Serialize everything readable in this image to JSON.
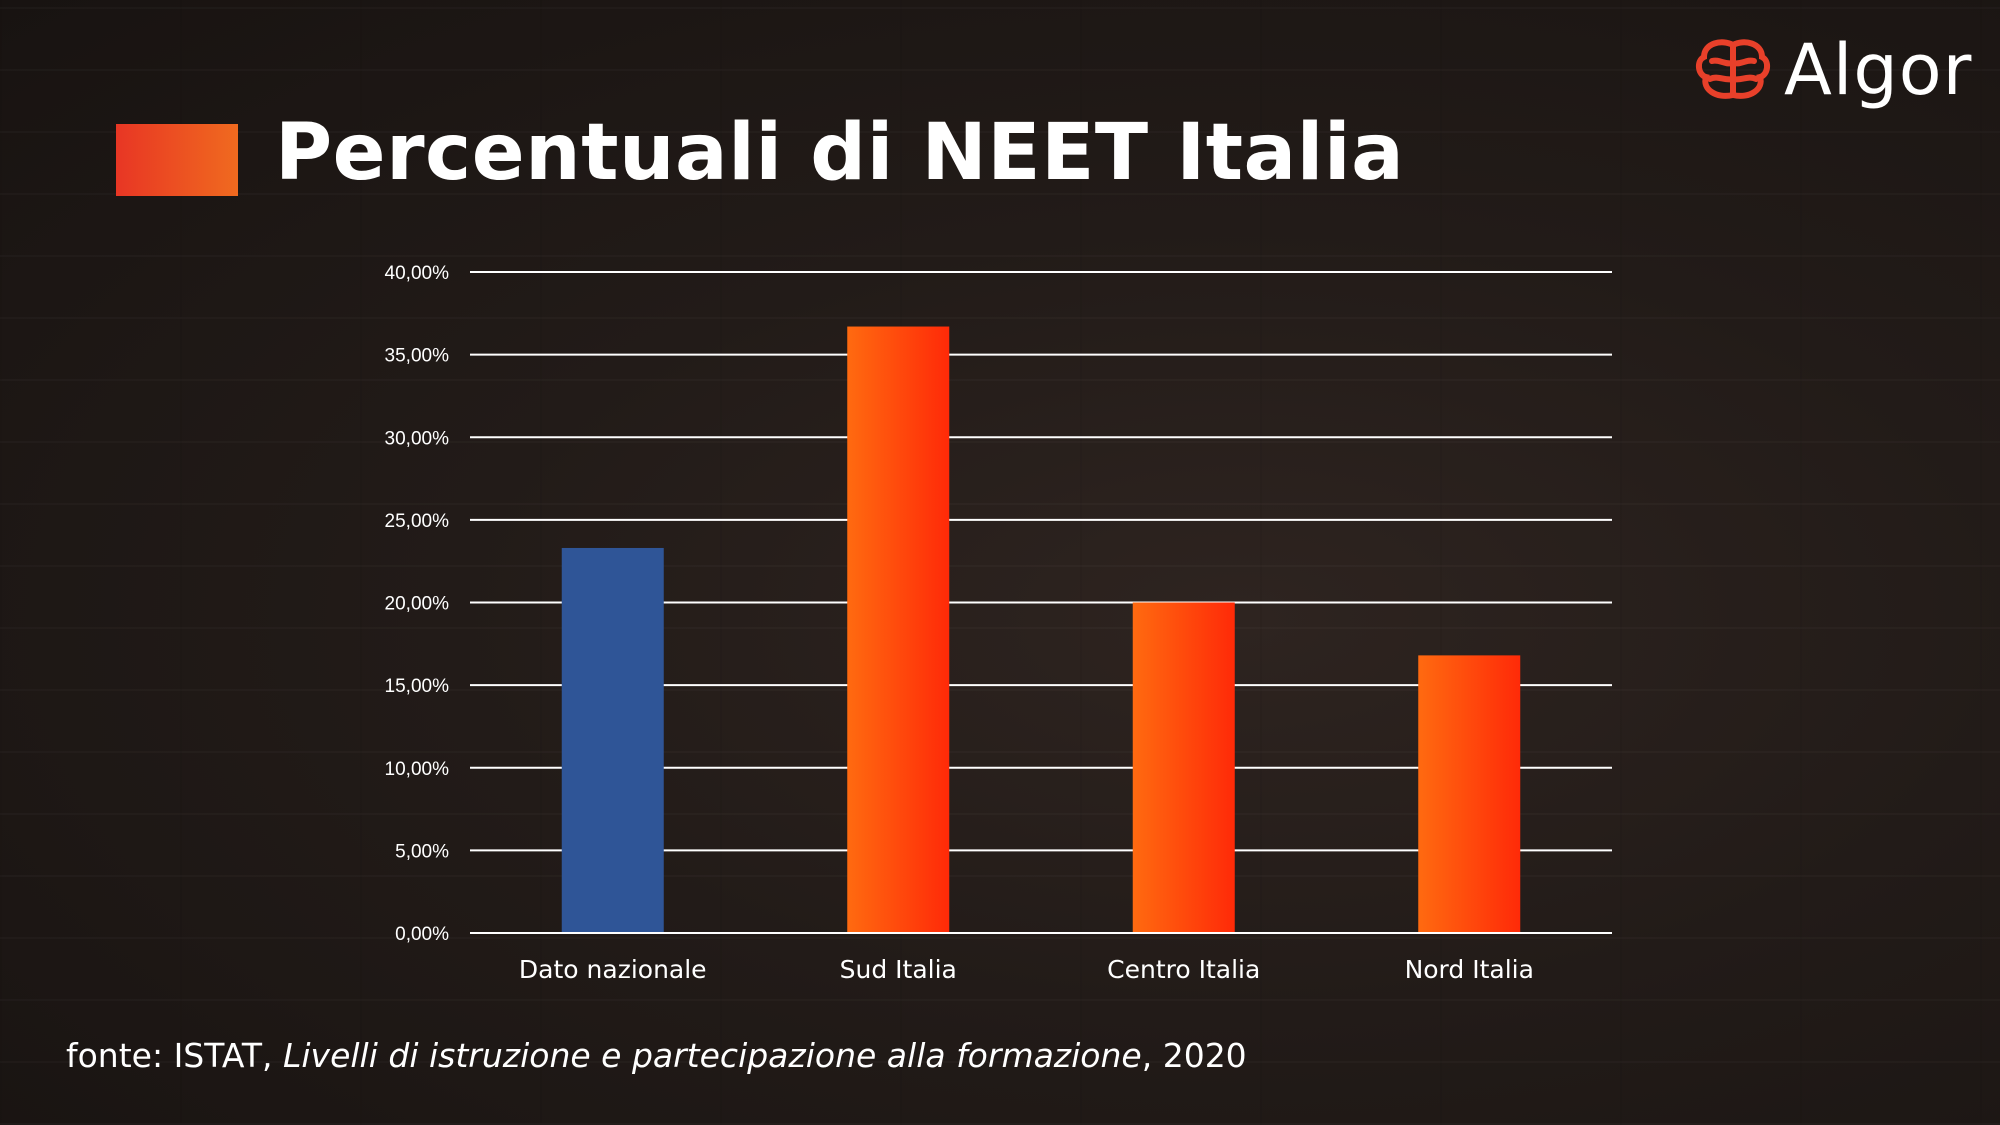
{
  "slide": {
    "title": "Percentuali di NEET Italia",
    "logo": {
      "text": "Algor",
      "icon": "brain-icon",
      "color": "#e8402a"
    },
    "footer": {
      "prefix": "fonte: ISTAT, ",
      "publication": "Livelli di istruzione e partecipazione alla formazione",
      "suffix": ", 2020"
    }
  },
  "chart_data": {
    "type": "bar",
    "title": "",
    "xlabel": "",
    "ylabel": "",
    "categories": [
      "Dato nazionale",
      "Sud Italia",
      "Centro Italia",
      "Nord Italia"
    ],
    "values": [
      23.3,
      36.7,
      20.0,
      16.8
    ],
    "ylim": [
      0,
      40
    ],
    "yticks": [
      "0,00%",
      "5,00%",
      "10,00%",
      "15,00%",
      "20,00%",
      "25,00%",
      "30,00%",
      "35,00%",
      "40,00%"
    ],
    "grid": true,
    "legend": "none",
    "colors": {
      "national": "#2f5597",
      "regional_start": "#ff6a10",
      "regional_end": "#ff2a08",
      "grid": "#ffffff"
    }
  }
}
